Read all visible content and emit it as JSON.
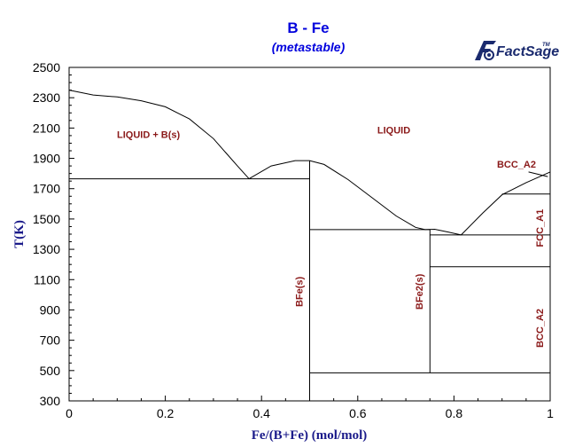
{
  "chart_data": {
    "type": "line",
    "title": "B - Fe",
    "subtitle": "(metastable)",
    "xlabel": "Fe/(B+Fe) (mol/mol)",
    "ylabel": "T(K)",
    "xlim": [
      0,
      1
    ],
    "ylim": [
      300,
      2500
    ],
    "x_ticks": [
      "0",
      "0.2",
      "0.4",
      "0.6",
      "0.8",
      "1"
    ],
    "y_ticks": [
      "300",
      "500",
      "700",
      "900",
      "1100",
      "1300",
      "1500",
      "1700",
      "1900",
      "2100",
      "2300",
      "2500"
    ],
    "grid": false,
    "series": [
      {
        "values": [
          [
            0,
            2350
          ],
          [
            0.05,
            2318
          ],
          [
            0.1,
            2305
          ],
          [
            0.15,
            2280
          ],
          [
            0.2,
            2240
          ],
          [
            0.25,
            2160
          ],
          [
            0.3,
            2030
          ],
          [
            0.35,
            1850
          ],
          [
            0.374,
            1765
          ]
        ]
      },
      {
        "values": [
          [
            0.374,
            1765
          ],
          [
            0.42,
            1850
          ],
          [
            0.47,
            1885
          ],
          [
            0.5,
            1885
          ]
        ]
      },
      {
        "values": [
          [
            0.5,
            1885
          ],
          [
            0.53,
            1860
          ],
          [
            0.58,
            1760
          ],
          [
            0.63,
            1640
          ],
          [
            0.68,
            1520
          ],
          [
            0.72,
            1445
          ],
          [
            0.74,
            1430
          ]
        ]
      },
      {
        "values": [
          [
            0.74,
            1430
          ],
          [
            0.76,
            1432
          ],
          [
            0.79,
            1412
          ],
          [
            0.815,
            1395
          ]
        ]
      },
      {
        "values": [
          [
            0.815,
            1395
          ],
          [
            0.86,
            1540
          ],
          [
            0.9,
            1660
          ],
          [
            0.95,
            1740
          ],
          [
            1.0,
            1810
          ]
        ]
      },
      {
        "values": [
          [
            0,
            1765
          ],
          [
            0.5,
            1765
          ]
        ]
      },
      {
        "values": [
          [
            0.5,
            1430
          ],
          [
            0.75,
            1430
          ]
        ]
      },
      {
        "values": [
          [
            0.75,
            1395
          ],
          [
            1.0,
            1395
          ]
        ]
      },
      {
        "values": [
          [
            0.75,
            1185
          ],
          [
            1.0,
            1185
          ]
        ]
      },
      {
        "values": [
          [
            0.5,
            485
          ],
          [
            1.0,
            485
          ]
        ]
      },
      {
        "values": [
          [
            0.9,
            1665
          ],
          [
            1.0,
            1665
          ]
        ]
      },
      {
        "values": [
          [
            0.5,
            300
          ],
          [
            0.5,
            1885
          ]
        ]
      },
      {
        "values": [
          [
            0.75,
            485
          ],
          [
            0.75,
            1432
          ]
        ]
      },
      {
        "values": [
          [
            0.955,
            1810
          ],
          [
            0.995,
            1780
          ]
        ]
      }
    ],
    "annotations": [
      {
        "text": "LIQUID + B(s)",
        "x": 0.165,
        "y": 2035,
        "rotate": 0
      },
      {
        "text": "LIQUID",
        "x": 0.675,
        "y": 2065,
        "rotate": 0
      },
      {
        "text": "BCC_A2",
        "x": 0.93,
        "y": 1840,
        "rotate": 0
      },
      {
        "text": "BFe(s)",
        "x": 0.485,
        "y": 1020,
        "rotate": -90
      },
      {
        "text": "BFe2(s)",
        "x": 0.735,
        "y": 1020,
        "rotate": -90
      },
      {
        "text": "FCC_A1",
        "x": 0.985,
        "y": 1440,
        "rotate": -90
      },
      {
        "text": "BCC_A2",
        "x": 0.985,
        "y": 780,
        "rotate": -90
      }
    ],
    "legend": "none"
  },
  "logo": {
    "text": "FactSage",
    "superscript": "TM"
  },
  "colors": {
    "title": "#0000dd",
    "axis_title": "#1a1a8a",
    "region_label": "#8b1a1a",
    "curve": "#000000"
  }
}
